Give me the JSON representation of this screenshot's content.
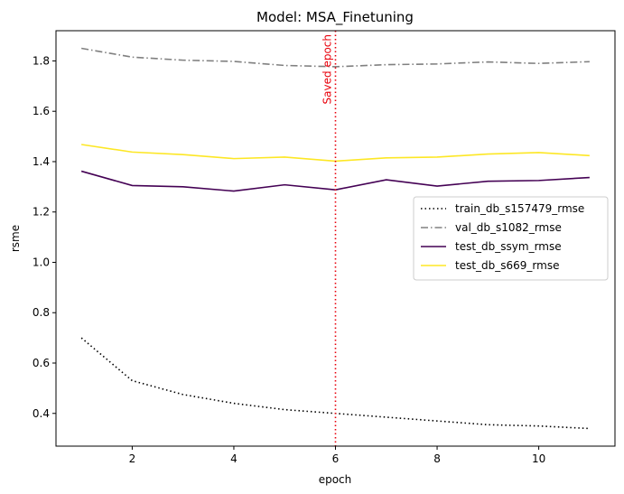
{
  "chart_data": {
    "type": "line",
    "title": "Model: MSA_Finetuning",
    "xlabel": "epoch",
    "ylabel": "rsme",
    "xlim": [
      0.5,
      11.5
    ],
    "ylim": [
      0.27,
      1.92
    ],
    "xticks": [
      2,
      4,
      6,
      8,
      10
    ],
    "yticks": [
      0.4,
      0.6,
      0.8,
      1.0,
      1.2,
      1.4,
      1.6,
      1.8
    ],
    "grid": false,
    "legend_position": "center-right",
    "x": [
      1,
      2,
      3,
      4,
      5,
      6,
      7,
      8,
      9,
      10,
      11
    ],
    "series": [
      {
        "name": "train_db_s157479_rmse",
        "color": "#000000",
        "dash": "dotted",
        "values": [
          0.7,
          0.53,
          0.475,
          0.44,
          0.415,
          0.4,
          0.385,
          0.37,
          0.355,
          0.35,
          0.34
        ]
      },
      {
        "name": "val_db_s1082_rmse",
        "color": "#808080",
        "dash": "dashdot",
        "values": [
          1.85,
          1.815,
          1.803,
          1.798,
          1.782,
          1.777,
          1.785,
          1.788,
          1.796,
          1.79,
          1.797
        ]
      },
      {
        "name": "test_db_ssym_rmse",
        "color": "#440154",
        "dash": "solid",
        "values": [
          1.362,
          1.305,
          1.3,
          1.283,
          1.308,
          1.288,
          1.328,
          1.303,
          1.322,
          1.325,
          1.337
        ]
      },
      {
        "name": "test_db_s669_rmse",
        "color": "#fde725",
        "dash": "solid",
        "values": [
          1.468,
          1.438,
          1.428,
          1.412,
          1.418,
          1.402,
          1.415,
          1.418,
          1.43,
          1.436,
          1.424
        ]
      }
    ],
    "annotations": [
      {
        "type": "vline",
        "x": 6,
        "label": "Saved epoch",
        "color": "#e8000b",
        "style": "dotted"
      }
    ]
  }
}
